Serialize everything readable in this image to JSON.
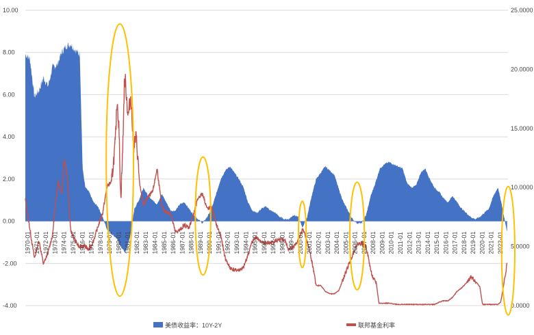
{
  "chart_data": {
    "type": "area",
    "title": "",
    "left_axis": {
      "ticks": [
        "10.00",
        "8.00",
        "6.00",
        "4.00",
        "2.00",
        "0.00",
        "-2.00",
        "-4.00"
      ],
      "ylim": [
        -4,
        10
      ]
    },
    "right_axis": {
      "ticks": [
        "25.0000",
        "20.0000",
        "15.0000",
        "10.0000",
        "5.0000",
        "0.0000"
      ],
      "ylim": [
        0,
        25
      ]
    },
    "x_ticks": [
      "1970-01",
      "1971-01",
      "1972-01",
      "1973-01",
      "1974-01",
      "1975-01",
      "1976-01",
      "1977-01",
      "1978-01",
      "1979-01",
      "1980-01",
      "1981-01",
      "1982-01",
      "1983-01",
      "1984-01",
      "1985-01",
      "1986-01",
      "1987-01",
      "1988-01",
      "1989-01",
      "1990-01",
      "1991-01",
      "1992-01",
      "1993-01",
      "1994-01",
      "1995-01",
      "1996-01",
      "1997-01",
      "1998-01",
      "1999-01",
      "2000-01",
      "2001-01",
      "2002-01",
      "2003-01",
      "2004-01",
      "2005-01",
      "2006-01",
      "2007-01",
      "2008-01",
      "2009-01",
      "2010-01",
      "2011-01",
      "2012-01",
      "2013-01",
      "2014-01",
      "2015-01",
      "2016-01",
      "2017-01",
      "2018-01",
      "2019-01",
      "2020-01",
      "2021-01",
      "2022-01"
    ],
    "xlim": [
      1970,
      2023.1
    ],
    "grid": true,
    "legend_position": "bottom",
    "series": [
      {
        "name": "美债收益率：10Y-2Y",
        "kind": "area",
        "axis": "left",
        "color": "#4472c4",
        "x": [
          1970.0,
          1970.5,
          1971.0,
          1971.5,
          1972.0,
          1972.5,
          1973.0,
          1973.5,
          1974.0,
          1974.5,
          1975.0,
          1975.5,
          1976.0,
          1976.3,
          1976.6,
          1977.0,
          1977.5,
          1978.0,
          1978.5,
          1979.0,
          1979.5,
          1980.0,
          1980.5,
          1981.0,
          1981.5,
          1982.0,
          1982.5,
          1983.0,
          1983.5,
          1984.0,
          1984.5,
          1985.0,
          1985.5,
          1986.0,
          1986.5,
          1987.0,
          1987.5,
          1988.0,
          1988.5,
          1989.0,
          1989.5,
          1990.0,
          1990.5,
          1991.0,
          1991.5,
          1992.0,
          1992.5,
          1993.0,
          1993.5,
          1994.0,
          1994.5,
          1995.0,
          1995.5,
          1996.0,
          1996.5,
          1997.0,
          1997.5,
          1998.0,
          1998.5,
          1999.0,
          1999.5,
          2000.0,
          2000.5,
          2001.0,
          2001.5,
          2002.0,
          2002.5,
          2003.0,
          2003.5,
          2004.0,
          2004.5,
          2005.0,
          2005.5,
          2006.0,
          2006.5,
          2007.0,
          2007.5,
          2008.0,
          2008.5,
          2009.0,
          2009.5,
          2010.0,
          2010.5,
          2011.0,
          2011.5,
          2012.0,
          2012.5,
          2013.0,
          2013.5,
          2014.0,
          2014.5,
          2015.0,
          2015.5,
          2016.0,
          2016.5,
          2017.0,
          2017.5,
          2018.0,
          2018.5,
          2019.0,
          2019.5,
          2020.0,
          2020.5,
          2021.0,
          2021.5,
          2022.0,
          2022.5,
          2023.0
        ],
        "values": [
          7.9,
          7.7,
          5.9,
          6.2,
          6.8,
          6.4,
          7.3,
          7.4,
          8.0,
          8.3,
          8.4,
          8.1,
          7.9,
          2.5,
          1.6,
          1.4,
          0.9,
          0.7,
          0.2,
          -0.4,
          -0.6,
          -0.8,
          -1.2,
          -1.5,
          -0.8,
          0.6,
          1.0,
          1.6,
          1.2,
          1.0,
          0.8,
          1.3,
          0.9,
          0.5,
          0.5,
          0.8,
          0.9,
          0.6,
          0.3,
          0.1,
          -0.1,
          0.2,
          0.6,
          1.3,
          2.0,
          2.4,
          2.6,
          2.3,
          2.0,
          1.6,
          0.9,
          0.5,
          0.4,
          0.6,
          0.7,
          0.5,
          0.4,
          0.2,
          0.1,
          0.1,
          0.3,
          0.2,
          -0.3,
          0.2,
          1.2,
          2.0,
          2.3,
          2.6,
          2.4,
          2.2,
          1.5,
          0.9,
          0.5,
          0.1,
          -0.1,
          -0.1,
          0.3,
          1.2,
          1.8,
          2.5,
          2.7,
          2.8,
          2.7,
          2.6,
          2.5,
          1.8,
          1.6,
          1.7,
          2.3,
          2.5,
          2.0,
          1.6,
          1.4,
          1.1,
          0.9,
          1.2,
          0.9,
          0.6,
          0.4,
          0.2,
          0.1,
          0.2,
          0.4,
          0.6,
          1.2,
          1.6,
          0.6,
          -0.5
        ]
      },
      {
        "name": "联邦基金利率",
        "kind": "line",
        "axis": "right",
        "color": "#c0504d",
        "x": [
          1970.0,
          1970.5,
          1971.0,
          1971.5,
          1972.0,
          1972.5,
          1973.0,
          1973.3,
          1973.6,
          1974.0,
          1974.3,
          1974.6,
          1975.0,
          1975.5,
          1976.0,
          1976.5,
          1977.0,
          1977.5,
          1978.0,
          1978.5,
          1979.0,
          1979.5,
          1979.9,
          1980.1,
          1980.3,
          1980.5,
          1980.7,
          1980.9,
          1981.0,
          1981.3,
          1981.6,
          1981.9,
          1982.2,
          1982.6,
          1983.0,
          1983.5,
          1984.0,
          1984.5,
          1985.0,
          1985.5,
          1986.0,
          1986.5,
          1987.0,
          1987.5,
          1988.0,
          1988.5,
          1989.0,
          1989.5,
          1990.0,
          1990.5,
          1991.0,
          1991.5,
          1992.0,
          1992.5,
          1993.0,
          1993.5,
          1994.0,
          1994.5,
          1995.0,
          1995.5,
          1996.0,
          1996.5,
          1997.0,
          1997.5,
          1998.0,
          1998.5,
          1999.0,
          1999.5,
          2000.0,
          2000.5,
          2001.0,
          2001.5,
          2002.0,
          2002.5,
          2003.0,
          2003.5,
          2004.0,
          2004.5,
          2005.0,
          2005.5,
          2006.0,
          2006.5,
          2007.0,
          2007.5,
          2008.0,
          2008.3,
          2008.6,
          2008.9,
          2009.5,
          2010.0,
          2011.0,
          2012.0,
          2013.0,
          2014.0,
          2015.0,
          2015.9,
          2016.5,
          2017.0,
          2017.5,
          2018.0,
          2018.5,
          2019.0,
          2019.5,
          2020.0,
          2020.3,
          2020.5,
          2021.0,
          2021.5,
          2022.0,
          2022.3,
          2022.6,
          2022.9,
          2023.0
        ],
        "values": [
          9.0,
          6.5,
          4.0,
          5.5,
          3.5,
          4.5,
          6.0,
          8.5,
          10.5,
          9.5,
          12.5,
          11.0,
          6.3,
          5.5,
          4.9,
          5.1,
          4.7,
          5.5,
          6.7,
          7.8,
          10.1,
          10.5,
          13.8,
          17.5,
          15.0,
          9.0,
          12.8,
          18.9,
          19.1,
          16.0,
          17.8,
          13.5,
          14.3,
          10.1,
          8.5,
          9.2,
          9.6,
          11.6,
          8.4,
          7.9,
          7.8,
          6.2,
          6.4,
          6.8,
          6.6,
          7.7,
          9.1,
          9.5,
          8.2,
          8.3,
          6.9,
          5.9,
          4.0,
          3.2,
          3.0,
          3.0,
          3.2,
          4.3,
          5.5,
          5.8,
          5.3,
          5.3,
          5.3,
          5.5,
          5.5,
          5.6,
          4.7,
          5.0,
          5.5,
          6.5,
          5.5,
          3.8,
          1.7,
          1.7,
          1.2,
          1.0,
          1.0,
          1.3,
          2.3,
          3.3,
          4.3,
          5.2,
          5.3,
          5.0,
          3.0,
          2.2,
          2.0,
          0.2,
          0.2,
          0.2,
          0.1,
          0.1,
          0.1,
          0.1,
          0.1,
          0.4,
          0.4,
          0.7,
          1.2,
          1.5,
          1.9,
          2.4,
          2.1,
          1.6,
          0.1,
          0.1,
          0.1,
          0.1,
          0.1,
          0.3,
          1.6,
          3.1,
          3.8
        ]
      }
    ],
    "annotations": [
      {
        "shape": "ellipse",
        "color": "#ffc000",
        "x_range": [
          1978.9,
          1981.9
        ],
        "y_left_range": [
          -3.55,
          9.35
        ]
      },
      {
        "shape": "ellipse",
        "color": "#ffc000",
        "x_range": [
          1988.7,
          1990.4
        ],
        "y_left_range": [
          -2.55,
          3.05
        ]
      },
      {
        "shape": "ellipse",
        "color": "#ffc000",
        "x_range": [
          2000.05,
          2000.9
        ],
        "y_left_range": [
          -2.2,
          0.95
        ]
      },
      {
        "shape": "ellipse",
        "color": "#ffc000",
        "x_range": [
          2005.7,
          2007.3
        ],
        "y_left_range": [
          -3.25,
          1.85
        ]
      },
      {
        "shape": "ellipse",
        "color": "#ffc000",
        "x_range": [
          2022.4,
          2023.85
        ],
        "y_left_range": [
          -4.45,
          1.65
        ]
      }
    ]
  }
}
